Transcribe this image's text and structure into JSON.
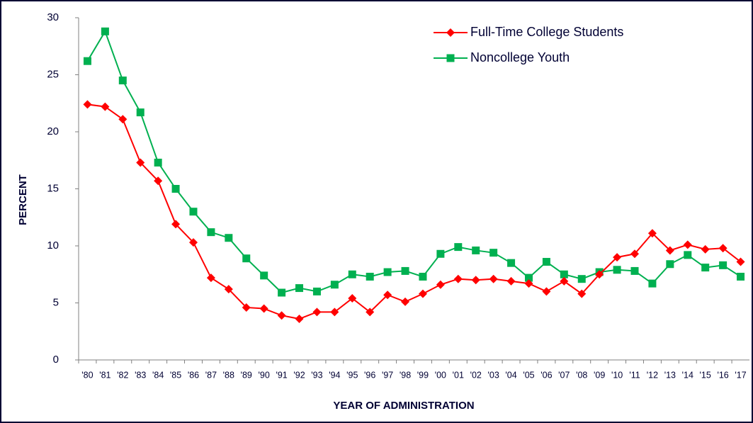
{
  "chart_data": {
    "type": "line",
    "x_label": "YEAR OF ADMINISTRATION",
    "y_label": "PERCENT",
    "categories": [
      "'80",
      "'81",
      "'82",
      "'83",
      "'84",
      "'85",
      "'86",
      "'87",
      "'88",
      "'89",
      "'90",
      "'91",
      "'92",
      "'93",
      "'94",
      "'95",
      "'96",
      "'97",
      "'98",
      "'99",
      "'00",
      "'01",
      "'02",
      "'03",
      "'04",
      "'05",
      "'06",
      "'07",
      "'08",
      "'09",
      "'10",
      "'11",
      "'12",
      "'13",
      "'14",
      "'15",
      "'16",
      "'17"
    ],
    "series": [
      {
        "name": "Full-Time College Students",
        "color": "#ff0000",
        "marker": "diamond",
        "values": [
          22.4,
          22.2,
          21.1,
          17.3,
          15.7,
          11.9,
          10.3,
          7.2,
          6.2,
          4.6,
          4.5,
          3.9,
          3.6,
          4.2,
          4.2,
          5.4,
          4.2,
          5.7,
          5.1,
          5.8,
          6.6,
          7.1,
          7.0,
          7.1,
          6.9,
          6.7,
          6.0,
          6.9,
          5.8,
          7.5,
          9.0,
          9.3,
          11.1,
          9.6,
          10.1,
          9.7,
          9.8,
          8.6
        ]
      },
      {
        "name": "Noncollege Youth",
        "color": "#00b050",
        "marker": "square",
        "values": [
          26.2,
          28.8,
          24.5,
          21.7,
          17.3,
          15.0,
          13.0,
          11.2,
          10.7,
          8.9,
          7.4,
          5.9,
          6.3,
          6.0,
          6.6,
          7.5,
          7.3,
          7.7,
          7.8,
          7.3,
          9.3,
          9.9,
          9.6,
          9.4,
          8.5,
          7.2,
          8.6,
          7.5,
          7.1,
          7.7,
          7.9,
          7.8,
          6.7,
          8.4,
          9.2,
          8.1,
          8.3,
          7.3
        ]
      }
    ],
    "ylim": [
      0,
      30
    ],
    "yticks": [
      0,
      5,
      10,
      15,
      20,
      25,
      30
    ],
    "grid": false,
    "legend": "top-right"
  }
}
